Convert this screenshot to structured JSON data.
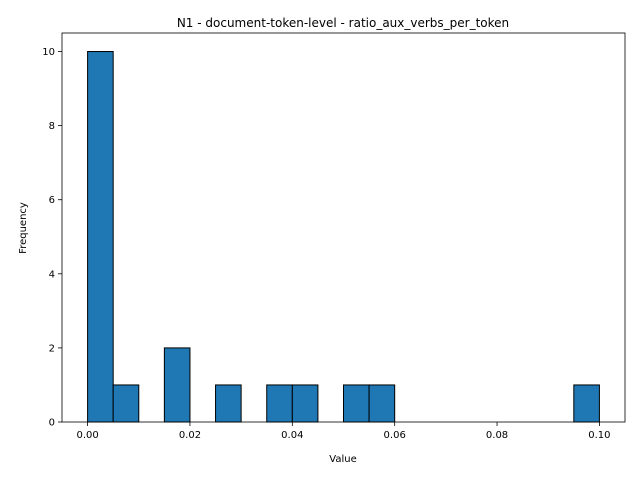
{
  "chart_data": {
    "type": "bar",
    "title": "N1 - document-token-level - ratio_aux_verbs_per_token",
    "xlabel": "Value",
    "ylabel": "Frequency",
    "xlim": [
      -0.005,
      0.105
    ],
    "ylim": [
      0,
      10.5
    ],
    "bin_edges": [
      0.0,
      0.005,
      0.01,
      0.015,
      0.02,
      0.025,
      0.03,
      0.035,
      0.04,
      0.045,
      0.05,
      0.055,
      0.06,
      0.065,
      0.07,
      0.075,
      0.08,
      0.085,
      0.09,
      0.095,
      0.1
    ],
    "values": [
      10,
      1,
      0,
      2,
      0,
      1,
      0,
      1,
      1,
      0,
      1,
      1,
      0,
      0,
      0,
      0,
      0,
      0,
      0,
      1
    ],
    "xticks": [
      "0.00",
      "0.02",
      "0.04",
      "0.06",
      "0.08",
      "0.10"
    ],
    "xtick_values": [
      0.0,
      0.02,
      0.04,
      0.06,
      0.08,
      0.1
    ],
    "yticks": [
      "0",
      "2",
      "4",
      "6",
      "8",
      "10"
    ],
    "ytick_values": [
      0,
      2,
      4,
      6,
      8,
      10
    ],
    "bar_color": "#1f77b4",
    "edge_color": "#000000",
    "grid": false
  }
}
